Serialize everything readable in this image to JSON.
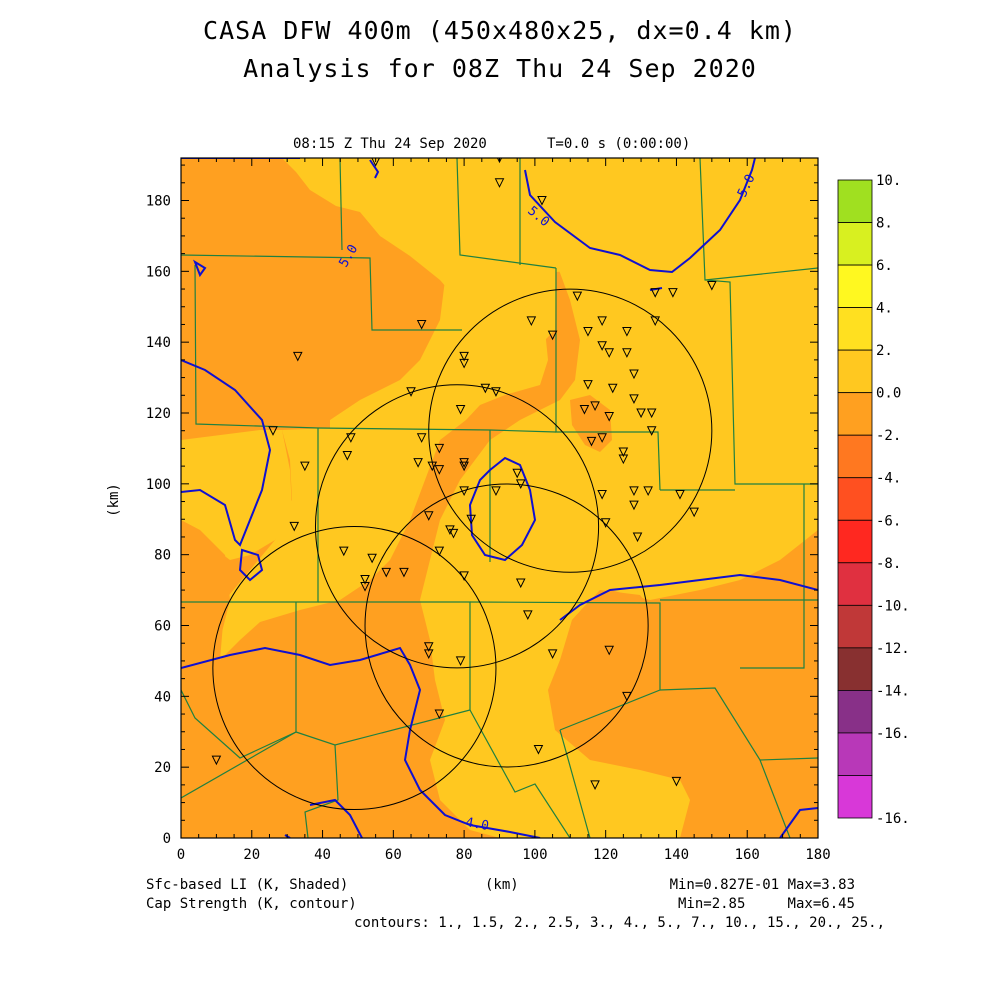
{
  "title": {
    "line1": "CASA DFW 400m (450x480x25, dx=0.4 km)",
    "line2": "Analysis for 08Z Thu 24 Sep 2020"
  },
  "subtitle": {
    "time": "08:15 Z Thu 24 Sep 2020",
    "elapsed": "T=0.0 s (0:00:00)"
  },
  "axes": {
    "x_label": "(km)",
    "y_label": "(km)",
    "x_ticks": [
      "0",
      "20",
      "40",
      "60",
      "80",
      "100",
      "120",
      "140",
      "160",
      "180"
    ],
    "y_ticks": [
      "0",
      "20",
      "40",
      "60",
      "80",
      "100",
      "120",
      "140",
      "160",
      "180"
    ],
    "x_range": [
      0,
      180
    ],
    "y_range": [
      0,
      192
    ]
  },
  "colorbar": {
    "labels": [
      "10.",
      "8.",
      "6.",
      "4.",
      "2.",
      "0.0",
      "-2.",
      "-4.",
      "-6.",
      "-8.",
      "-10.",
      "-12.",
      "-14.",
      "-16."
    ],
    "colors": [
      "#a0e020",
      "#d8f020",
      "#fff820",
      "#ffe020",
      "#ffc820",
      "#ffa020",
      "#ff7820",
      "#ff5020",
      "#ff2820",
      "#e03040",
      "#c03838",
      "#883030",
      "#883088",
      "#b838b8",
      "#d838d8"
    ]
  },
  "contour_labels": [
    "5.0",
    "5.0",
    "5.0",
    "4.0"
  ],
  "footer": {
    "shaded_field": "Sfc-based LI (K, Shaded)",
    "contour_field": "Cap Strength (K, contour)",
    "x_unit": "(km)",
    "shaded_range": "Min=0.827E-01 Max=3.83",
    "contour_range": "Min=2.85     Max=6.45",
    "contours": "contours: 1., 1.5, 2., 2.5, 3., 4., 5., 7., 10., 15., 20., 25.,"
  },
  "colors": {
    "orange_fill": "#ffa020",
    "yellow_fill": "#ffc820",
    "contour": "#1010d0",
    "boundaries": "#208040",
    "radar_rings": "#000000"
  },
  "radars": [
    {
      "x": 110,
      "y": 115
    },
    {
      "x": 78,
      "y": 88
    },
    {
      "x": 92,
      "y": 60
    },
    {
      "x": 49,
      "y": 48
    }
  ],
  "stations": [
    [
      55,
      191
    ],
    [
      90,
      192
    ],
    [
      90,
      185
    ],
    [
      102,
      180
    ],
    [
      112,
      153
    ],
    [
      134,
      154
    ],
    [
      139,
      154
    ],
    [
      150,
      156
    ],
    [
      68,
      145
    ],
    [
      99,
      146
    ],
    [
      105,
      142
    ],
    [
      115,
      143
    ],
    [
      119,
      146
    ],
    [
      126,
      143
    ],
    [
      134,
      146
    ],
    [
      33,
      136
    ],
    [
      80,
      136
    ],
    [
      80,
      134
    ],
    [
      86,
      127
    ],
    [
      89,
      126
    ],
    [
      65,
      126
    ],
    [
      119,
      139
    ],
    [
      121,
      137
    ],
    [
      126,
      137
    ],
    [
      128,
      131
    ],
    [
      115,
      128
    ],
    [
      122,
      127
    ],
    [
      128,
      124
    ],
    [
      79,
      121
    ],
    [
      114,
      121
    ],
    [
      117,
      122
    ],
    [
      121,
      119
    ],
    [
      130,
      120
    ],
    [
      133,
      120
    ],
    [
      26,
      115
    ],
    [
      133,
      115
    ],
    [
      68,
      113
    ],
    [
      48,
      113
    ],
    [
      73,
      110
    ],
    [
      47,
      108
    ],
    [
      35,
      105
    ],
    [
      67,
      106
    ],
    [
      71,
      105
    ],
    [
      73,
      104
    ],
    [
      80,
      106
    ],
    [
      80,
      105
    ],
    [
      125,
      107
    ],
    [
      125,
      109
    ],
    [
      116,
      112
    ],
    [
      119,
      113
    ],
    [
      95,
      103
    ],
    [
      96,
      100
    ],
    [
      89,
      98
    ],
    [
      80,
      98
    ],
    [
      128,
      98
    ],
    [
      132,
      98
    ],
    [
      141,
      97
    ],
    [
      119,
      97
    ],
    [
      128,
      94
    ],
    [
      145,
      92
    ],
    [
      70,
      91
    ],
    [
      82,
      90
    ],
    [
      120,
      89
    ],
    [
      32,
      88
    ],
    [
      77,
      86
    ],
    [
      76,
      87
    ],
    [
      73,
      81
    ],
    [
      129,
      85
    ],
    [
      46,
      81
    ],
    [
      54,
      79
    ],
    [
      58,
      75
    ],
    [
      63,
      75
    ],
    [
      52,
      73
    ],
    [
      52,
      71
    ],
    [
      80,
      74
    ],
    [
      96,
      72
    ],
    [
      98,
      63
    ],
    [
      70,
      54
    ],
    [
      70,
      52
    ],
    [
      79,
      50
    ],
    [
      105,
      52
    ],
    [
      121,
      53
    ],
    [
      126,
      40
    ],
    [
      73,
      35
    ],
    [
      101,
      25
    ],
    [
      10,
      22
    ],
    [
      117,
      15
    ],
    [
      140,
      16
    ]
  ]
}
